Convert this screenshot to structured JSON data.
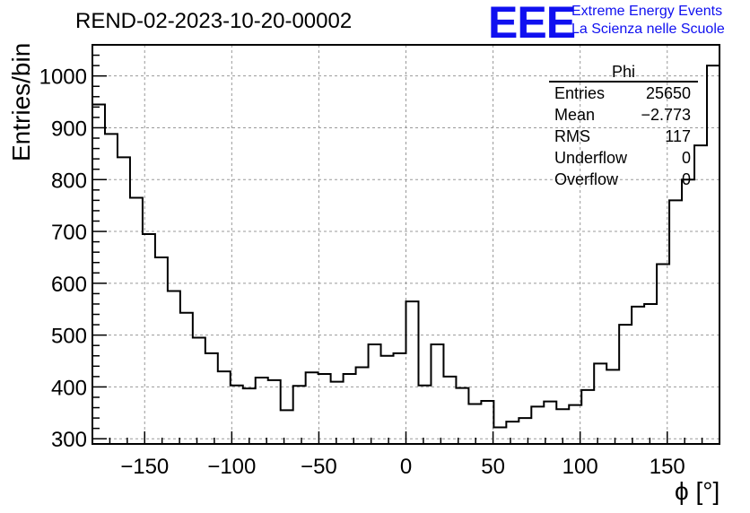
{
  "header": {
    "run_title": "REND-02-2023-10-20-00002",
    "logo_text": "EEE",
    "org_line1": "Extreme Energy Events",
    "org_line2": "La Scienza nelle Scuole"
  },
  "stats": {
    "title": "Phi",
    "rows": [
      {
        "label": "Entries",
        "value": "25650"
      },
      {
        "label": "Mean",
        "value": "−2.773"
      },
      {
        "label": "RMS",
        "value": "117"
      },
      {
        "label": "Underflow",
        "value": "0"
      },
      {
        "label": "Overflow",
        "value": "0"
      }
    ]
  },
  "chart_data": {
    "type": "histogram",
    "title": "REND-02-2023-10-20-00002",
    "xlabel": "ϕ [°]",
    "ylabel": "Entries/bin",
    "xlim": [
      -180,
      180
    ],
    "ylim": [
      290,
      1060
    ],
    "bin_width": 7.2,
    "x_ticks": [
      -150,
      -100,
      -50,
      0,
      50,
      100,
      150
    ],
    "y_ticks": [
      300,
      400,
      500,
      600,
      700,
      800,
      900,
      1000
    ],
    "grid": true,
    "line_color": "#000000",
    "values": [
      945,
      888,
      843,
      765,
      695,
      650,
      585,
      543,
      495,
      465,
      430,
      403,
      397,
      418,
      413,
      355,
      402,
      428,
      425,
      410,
      425,
      438,
      482,
      460,
      465,
      565,
      403,
      482,
      420,
      398,
      367,
      373,
      322,
      333,
      340,
      362,
      372,
      357,
      365,
      394,
      445,
      433,
      520,
      555,
      560,
      637,
      760,
      800,
      866,
      1020
    ]
  }
}
